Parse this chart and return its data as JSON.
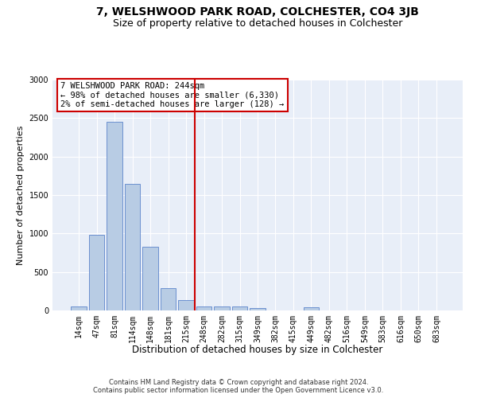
{
  "title": "7, WELSHWOOD PARK ROAD, COLCHESTER, CO4 3JB",
  "subtitle": "Size of property relative to detached houses in Colchester",
  "xlabel": "Distribution of detached houses by size in Colchester",
  "ylabel": "Number of detached properties",
  "bin_labels": [
    "14sqm",
    "47sqm",
    "81sqm",
    "114sqm",
    "148sqm",
    "181sqm",
    "215sqm",
    "248sqm",
    "282sqm",
    "315sqm",
    "349sqm",
    "382sqm",
    "415sqm",
    "449sqm",
    "482sqm",
    "516sqm",
    "549sqm",
    "583sqm",
    "616sqm",
    "650sqm",
    "683sqm"
  ],
  "bar_values": [
    50,
    980,
    2450,
    1640,
    830,
    290,
    135,
    55,
    55,
    55,
    30,
    0,
    0,
    40,
    0,
    0,
    0,
    0,
    0,
    0,
    0
  ],
  "bar_color": "#b8cce4",
  "bar_edge_color": "#4472c4",
  "property_line_bin": 7,
  "property_line_label": "7 WELSHWOOD PARK ROAD: 244sqm",
  "annotation_line1": "← 98% of detached houses are smaller (6,330)",
  "annotation_line2": "2% of semi-detached houses are larger (128) →",
  "annotation_box_color": "#cc0000",
  "vline_color": "#cc0000",
  "ylim": [
    0,
    3000
  ],
  "yticks": [
    0,
    500,
    1000,
    1500,
    2000,
    2500,
    3000
  ],
  "background_color": "#e8eef8",
  "footer_line1": "Contains HM Land Registry data © Crown copyright and database right 2024.",
  "footer_line2": "Contains public sector information licensed under the Open Government Licence v3.0.",
  "title_fontsize": 10,
  "subtitle_fontsize": 9,
  "tick_fontsize": 7,
  "ylabel_fontsize": 8,
  "xlabel_fontsize": 8.5,
  "annotation_fontsize": 7.5
}
